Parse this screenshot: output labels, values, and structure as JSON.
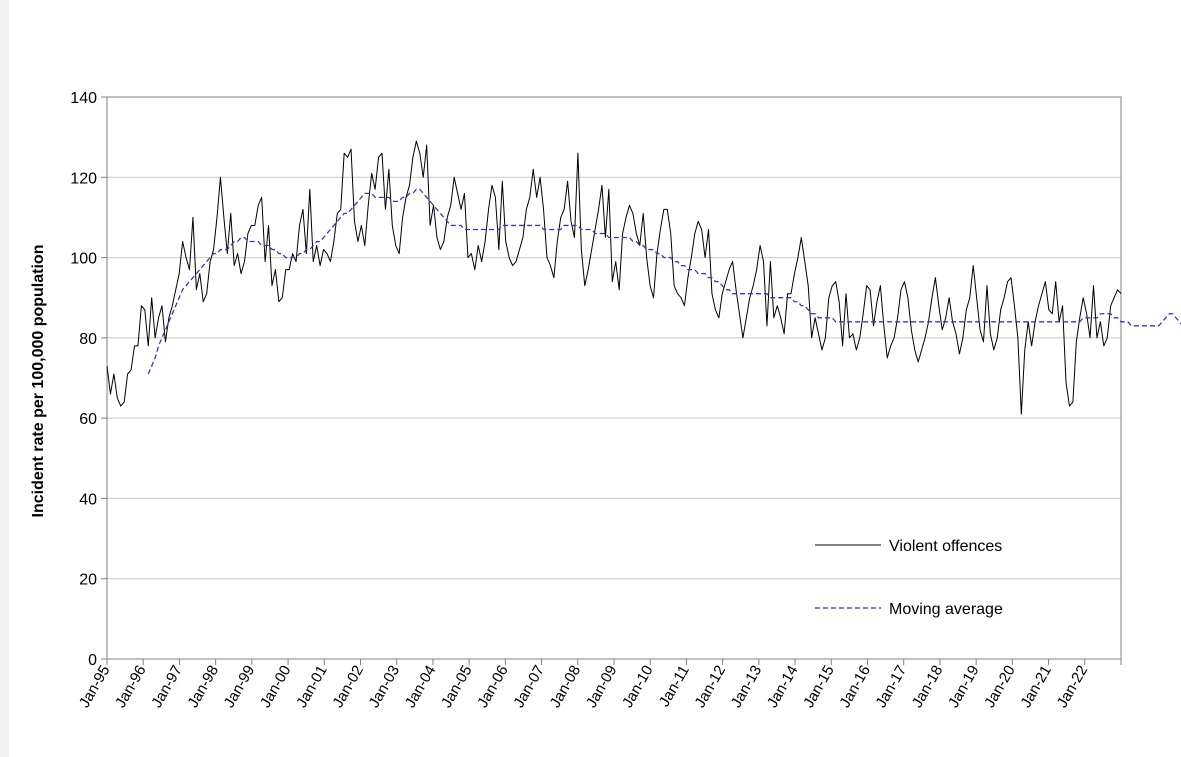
{
  "chart_data": {
    "type": "line",
    "title": "",
    "xlabel": "",
    "ylabel": "Incident rate per 100,000 population",
    "ylim": [
      0,
      140
    ],
    "yticks": [
      0,
      20,
      40,
      60,
      80,
      100,
      120,
      140
    ],
    "x_tick_labels": [
      "Jan-95",
      "Jan-96",
      "Jan-97",
      "Jan-98",
      "Jan-99",
      "Jan-00",
      "Jan-01",
      "Jan-02",
      "Jan-03",
      "Jan-04",
      "Jan-05",
      "Jan-06",
      "Jan-07",
      "Jan-08",
      "Jan-09",
      "Jan-10",
      "Jan-11",
      "Jan-12",
      "Jan-13",
      "Jan-14",
      "Jan-15",
      "Jan-16",
      "Jan-17",
      "Jan-18",
      "Jan-19",
      "Jan-20",
      "Jan-21",
      "Jan-22"
    ],
    "x_start": "Jan-95",
    "x_end": "Dec-22",
    "grid": "horizontal",
    "legend_position": "lower-right inside",
    "series": [
      {
        "name": "Violent offences",
        "style": "solid",
        "color": "#000000",
        "values": [
          73,
          66,
          71,
          65,
          63,
          64,
          71,
          72,
          78,
          78,
          88,
          87,
          78,
          90,
          80,
          85,
          88,
          79,
          85,
          88,
          92,
          96,
          104,
          100,
          97,
          110,
          92,
          96,
          89,
          91,
          99,
          102,
          110,
          120,
          110,
          101,
          111,
          98,
          101,
          96,
          99,
          106,
          108,
          108,
          113,
          115,
          99,
          108,
          93,
          97,
          89,
          90,
          97,
          97,
          101,
          99,
          108,
          112,
          101,
          117,
          99,
          103,
          98,
          102,
          101,
          99,
          104,
          111,
          112,
          126,
          125,
          127,
          109,
          104,
          108,
          103,
          113,
          121,
          117,
          125,
          126,
          112,
          122,
          108,
          103,
          101,
          110,
          115,
          118,
          125,
          129,
          126,
          120,
          128,
          108,
          113,
          105,
          102,
          104,
          110,
          113,
          120,
          116,
          112,
          116,
          100,
          101,
          97,
          103,
          99,
          104,
          112,
          118,
          115,
          102,
          119,
          104,
          100,
          98,
          99,
          102,
          105,
          112,
          115,
          122,
          115,
          120,
          112,
          100,
          98,
          95,
          104,
          110,
          112,
          119,
          109,
          105,
          126,
          102,
          93,
          97,
          102,
          107,
          112,
          118,
          105,
          117,
          94,
          99,
          92,
          106,
          110,
          113,
          111,
          106,
          103,
          111,
          100,
          93,
          90,
          101,
          107,
          112,
          112,
          106,
          93,
          91,
          90,
          88,
          95,
          100,
          106,
          109,
          107,
          100,
          107,
          91,
          87,
          85,
          91,
          94,
          97,
          99,
          92,
          86,
          80,
          85,
          90,
          93,
          97,
          103,
          99,
          83,
          99,
          85,
          88,
          85,
          81,
          91,
          91,
          96,
          100,
          105,
          99,
          93,
          80,
          85,
          81,
          77,
          80,
          90,
          93,
          94,
          89,
          78,
          91,
          80,
          81,
          77,
          80,
          86,
          93,
          92,
          83,
          89,
          93,
          83,
          75,
          78,
          80,
          85,
          92,
          94,
          90,
          82,
          77,
          74,
          77,
          80,
          84,
          90,
          95,
          88,
          82,
          85,
          90,
          84,
          81,
          76,
          80,
          87,
          90,
          98,
          90,
          82,
          79,
          93,
          81,
          77,
          80,
          87,
          90,
          94,
          95,
          88,
          80,
          61,
          77,
          84,
          78,
          84,
          88,
          91,
          94,
          87,
          86,
          94,
          84,
          88,
          69,
          63,
          64,
          79,
          85,
          90,
          86,
          80,
          93,
          80,
          84,
          78,
          80,
          88,
          90,
          92,
          91
        ]
      },
      {
        "name": "Moving average",
        "style": "dashed",
        "color": "#3b3b9a",
        "start_index": 12,
        "values": [
          71,
          73,
          75,
          78,
          80,
          82,
          84,
          86,
          88,
          90,
          92,
          93,
          94,
          95,
          96,
          97,
          98,
          99,
          100,
          101,
          101,
          102,
          102,
          102,
          103,
          104,
          104,
          105,
          105,
          104,
          104,
          104,
          104,
          103,
          103,
          103,
          102,
          102,
          101,
          101,
          100,
          100,
          100,
          100,
          101,
          101,
          102,
          102,
          103,
          104,
          104,
          105,
          106,
          107,
          108,
          109,
          110,
          111,
          111,
          112,
          113,
          114,
          115,
          116,
          116,
          116,
          115,
          115,
          115,
          115,
          115,
          114,
          114,
          114,
          115,
          115,
          116,
          116,
          117,
          117,
          116,
          115,
          114,
          113,
          112,
          111,
          110,
          109,
          108,
          108,
          108,
          108,
          107,
          107,
          107,
          107,
          107,
          107,
          107,
          107,
          107,
          107,
          107,
          108,
          108,
          108,
          108,
          108,
          108,
          108,
          108,
          108,
          108,
          108,
          108,
          107,
          107,
          107,
          107,
          107,
          107,
          108,
          108,
          108,
          108,
          108,
          107,
          107,
          107,
          107,
          106,
          106,
          106,
          106,
          105,
          105,
          105,
          105,
          105,
          105,
          105,
          104,
          104,
          103,
          103,
          102,
          102,
          102,
          101,
          101,
          100,
          100,
          100,
          99,
          99,
          98,
          98,
          97,
          97,
          97,
          96,
          96,
          96,
          95,
          95,
          94,
          94,
          93,
          92,
          92,
          91,
          91,
          91,
          91,
          91,
          91,
          91,
          91,
          91,
          91,
          91,
          90,
          90,
          90,
          90,
          90,
          90,
          90,
          89,
          89,
          88,
          88,
          87,
          86,
          86,
          85,
          85,
          85,
          85,
          85,
          84,
          84,
          84,
          84,
          84,
          84,
          84,
          84,
          84,
          84,
          84,
          84,
          84,
          84,
          84,
          84,
          84,
          84,
          84,
          84,
          84,
          84,
          84,
          84,
          84,
          84,
          84,
          84,
          84,
          84,
          84,
          84,
          84,
          84,
          84,
          84,
          84,
          84,
          84,
          84,
          84,
          84,
          84,
          84,
          84,
          84,
          84,
          84,
          84,
          84,
          84,
          84,
          84,
          84,
          84,
          84,
          84,
          84,
          84,
          84,
          84,
          84,
          84,
          84,
          84,
          84,
          84,
          84,
          84,
          84,
          84,
          84,
          85,
          85,
          85,
          85,
          85,
          86,
          86,
          86,
          86,
          85,
          85,
          84,
          84,
          84,
          83,
          83,
          83,
          83,
          83,
          83,
          83,
          83,
          83,
          84,
          85,
          86,
          86,
          85,
          84,
          83,
          82,
          81,
          81,
          81,
          81,
          80,
          80,
          80,
          81,
          82,
          83,
          84,
          85,
          86
        ]
      }
    ]
  }
}
